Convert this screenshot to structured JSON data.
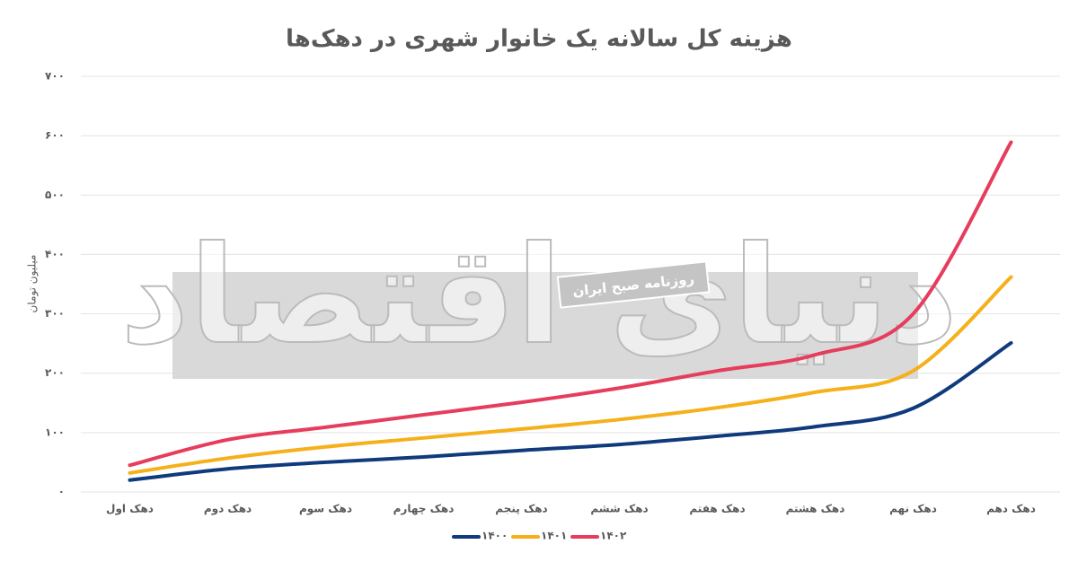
{
  "chart_data": {
    "type": "line",
    "title": "هزینه کل سالانه یک خانوار شهری در دهک‌ها",
    "y_label": "میلیون تومان",
    "watermark": "دنیای اقتصاد",
    "watermark_subtitle": "روزنامه صبح ایران",
    "categories": [
      "دهک اول",
      "دهک دوم",
      "دهک سوم",
      "دهک چهارم",
      "دهک پنجم",
      "دهک ششم",
      "دهک هفتم",
      "دهک هشتم",
      "دهک نهم",
      "دهک دهم"
    ],
    "series": [
      {
        "name": "۱۴۰۰",
        "color": "#0f3a7d",
        "values": [
          20,
          39,
          50,
          59,
          70,
          80,
          94,
          110,
          141,
          251
        ]
      },
      {
        "name": "۱۴۰۱",
        "color": "#f5b01a",
        "values": [
          32,
          57,
          76,
          91,
          106,
          122,
          142,
          168,
          204,
          362
        ]
      },
      {
        "name": "۱۴۰۲",
        "color": "#e63d5d",
        "values": [
          45,
          88,
          109,
          130,
          151,
          175,
          204,
          231,
          300,
          589
        ]
      }
    ],
    "ylim": [
      0,
      700
    ],
    "yticks": [
      {
        "value": 0,
        "label": "۰"
      },
      {
        "value": 100,
        "label": "۱۰۰"
      },
      {
        "value": 200,
        "label": "۲۰۰"
      },
      {
        "value": 300,
        "label": "۳۰۰"
      },
      {
        "value": 400,
        "label": "۴۰۰"
      },
      {
        "value": 500,
        "label": "۵۰۰"
      },
      {
        "value": 600,
        "label": "۶۰۰"
      },
      {
        "value": 700,
        "label": "۷۰۰"
      }
    ],
    "grid": true,
    "legend": "bottom"
  }
}
